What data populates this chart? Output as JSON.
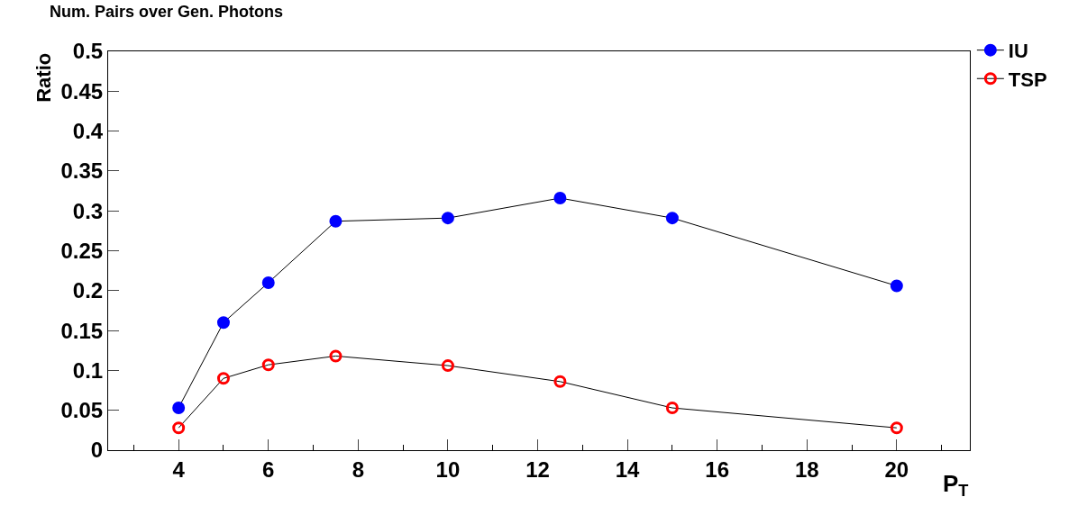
{
  "chart_data": {
    "type": "line",
    "title": "Num. Pairs over Gen. Photons",
    "xlabel": "P$_{T}$",
    "ylabel": "Ratio",
    "x": [
      4,
      5,
      6,
      7.5,
      10,
      12.5,
      15,
      20
    ],
    "series": [
      {
        "name": "IU",
        "color": "#0000ff",
        "marker": "circle",
        "values": [
          0.053,
          0.16,
          0.21,
          0.287,
          0.291,
          0.316,
          0.291,
          0.206
        ]
      },
      {
        "name": "TSP",
        "color": "#ff0000",
        "marker": "circle-open",
        "values": [
          0.028,
          0.09,
          0.107,
          0.118,
          0.106,
          0.086,
          0.053,
          0.028
        ]
      }
    ],
    "xlim": [
      2.43,
      21.63
    ],
    "xticks": [
      4,
      6,
      8,
      10,
      12,
      14,
      16,
      18,
      20
    ],
    "ylim": [
      0,
      0.5
    ],
    "yticks": [
      0,
      0.05,
      0.1,
      0.15,
      0.2,
      0.25,
      0.3,
      0.35,
      0.4,
      0.45,
      0.5
    ],
    "legend": "top right",
    "line_style": "solid"
  }
}
